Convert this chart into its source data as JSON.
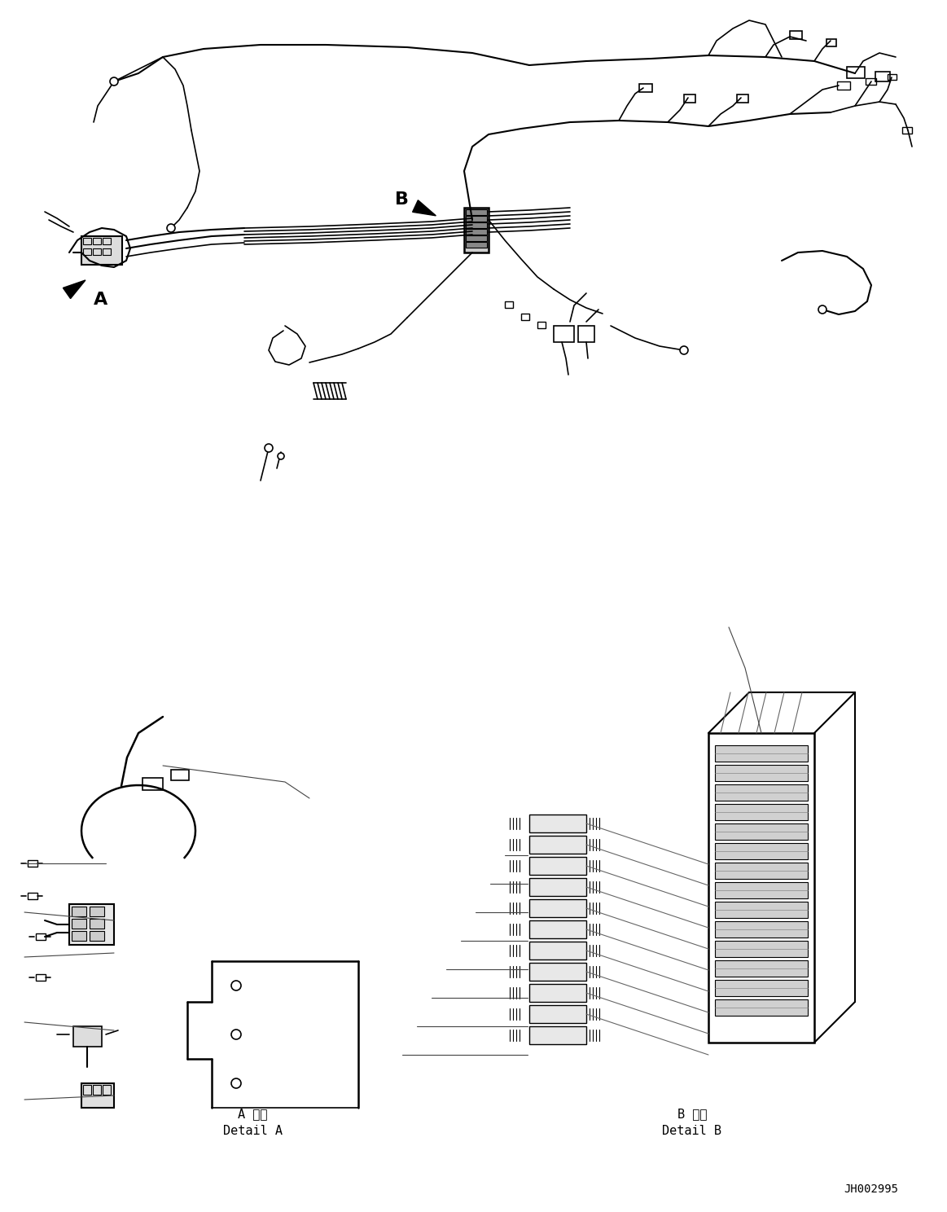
{
  "title": "",
  "background_color": "#ffffff",
  "fig_width": 11.63,
  "fig_height": 14.88,
  "dpi": 100,
  "part_code": "JH002995",
  "detail_a_label": "A 詳細\nDetail A",
  "detail_b_label": "B 詳細\nDetail B",
  "label_a": "A",
  "label_b": "B",
  "line_color": "#000000",
  "line_width": 1.2,
  "arrow_color": "#000000"
}
